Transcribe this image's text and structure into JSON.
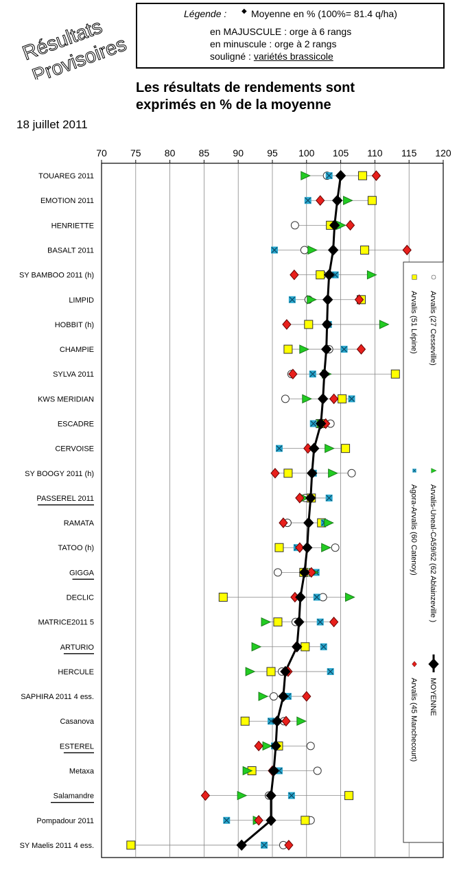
{
  "stamp": {
    "line1": "Résultats",
    "line2": "Provisoires"
  },
  "legend_box": {
    "title": "Légende :",
    "line1": "Moyenne en % (100%= 81.4 q/ha)",
    "line2": "en MAJUSCULE : orge à 6 rangs",
    "line3": "en minuscule : orge à 2 rangs",
    "line4_prefix": "souligné : ",
    "line4_underlined": "variétés brassicole"
  },
  "subtitle": {
    "line1": "Les résultats de rendements sont",
    "line2": "exprimés en % de la moyenne"
  },
  "date": "18 juillet 2011",
  "chart_data": {
    "type": "scatter",
    "xlim": [
      70,
      120
    ],
    "xticks": [
      70,
      75,
      80,
      85,
      90,
      95,
      100,
      105,
      110,
      115,
      120
    ],
    "grid": true,
    "legend_position": "right",
    "categories": [
      {
        "label": "TOUAREG 2011",
        "underline": false
      },
      {
        "label": "EMOTION 2011",
        "underline": false
      },
      {
        "label": "HENRIETTE",
        "underline": false
      },
      {
        "label": "BASALT 2011",
        "underline": false
      },
      {
        "label": "SY BAMBOO 2011 (h)",
        "underline": false
      },
      {
        "label": "LIMPID",
        "underline": false
      },
      {
        "label": "HOBBIT  (h)",
        "underline": false
      },
      {
        "label": "CHAMPIE",
        "underline": false
      },
      {
        "label": "SYLVA 2011",
        "underline": false
      },
      {
        "label": "KWS MERIDIAN",
        "underline": false
      },
      {
        "label": "ESCADRE",
        "underline": false
      },
      {
        "label": "CERVOISE",
        "underline": false
      },
      {
        "label": "SY BOOGY 2011 (h)",
        "underline": false
      },
      {
        "label": "PASSEREL 2011",
        "underline": true
      },
      {
        "label": "RAMATA",
        "underline": false
      },
      {
        "label": "TATOO  (h)",
        "underline": false
      },
      {
        "label": "GIGGA",
        "underline": true
      },
      {
        "label": "DECLIC",
        "underline": false
      },
      {
        "label": "MATRICE2011 5",
        "underline": false
      },
      {
        "label": "ARTURIO",
        "underline": true
      },
      {
        "label": "HERCULE",
        "underline": false
      },
      {
        "label": "SAPHIRA 2011  4 ess.",
        "underline": false
      },
      {
        "label": "Casanova",
        "underline": false
      },
      {
        "label": "ESTEREL",
        "underline": true
      },
      {
        "label": "Metaxa",
        "underline": false
      },
      {
        "label": "Salamandre",
        "underline": true
      },
      {
        "label": "Pompadour 2011",
        "underline": false
      },
      {
        "label": "SY Maelis 2011  4 ess.",
        "underline": false
      }
    ],
    "series": [
      {
        "name": "Arvalis (51 Lépine)",
        "marker": "square",
        "color": "#ffff00",
        "values": [
          108.2,
          109.6,
          103.5,
          108.5,
          102.0,
          108.0,
          100.3,
          97.3,
          113.0,
          105.2,
          102.0,
          105.7,
          97.3,
          100.7,
          102.2,
          96.0,
          99.6,
          87.8,
          95.8,
          99.8,
          94.8,
          null,
          91.0,
          95.9,
          92.0,
          106.2,
          99.8,
          74.3
        ]
      },
      {
        "name": "Arvalis (27 Cesseville)",
        "marker": "circle",
        "color": "#ffffff",
        "values": [
          103.0,
          null,
          98.3,
          99.7,
          102.3,
          100.3,
          103.0,
          103.3,
          97.8,
          96.9,
          103.5,
          null,
          106.6,
          99.8,
          97.2,
          104.2,
          95.8,
          102.4,
          98.4,
          null,
          96.4,
          95.2,
          96.7,
          100.6,
          101.6,
          94.5,
          100.6,
          96.6
        ]
      },
      {
        "name": "Agora-Arvalis (60 Catenoy)",
        "marker": "x-square",
        "color": "#29a8cf",
        "values": [
          103.3,
          100.2,
          104.5,
          95.3,
          104.2,
          97.9,
          103.2,
          105.5,
          100.9,
          106.6,
          101.0,
          96.0,
          101.0,
          103.3,
          102.6,
          98.6,
          101.4,
          101.5,
          102.0,
          102.5,
          103.5,
          97.3,
          94.8,
          95.3,
          96.0,
          97.8,
          88.3,
          93.8
        ]
      },
      {
        "name": "Arvalis-Uneal-CA59/62 (62 Ablainzeville )",
        "marker": "triangle",
        "color": "#22cc22",
        "values": [
          99.8,
          106.0,
          105.0,
          100.8,
          109.5,
          100.7,
          111.3,
          99.6,
          102.9,
          100.0,
          102.2,
          103.3,
          103.8,
          99.6,
          103.2,
          102.8,
          101.0,
          106.3,
          94.0,
          92.6,
          91.7,
          93.6,
          99.2,
          94.2,
          91.3,
          90.5,
          92.8,
          null
        ]
      },
      {
        "name": "Arvalis (45 Manchecourt)",
        "marker": "diamond",
        "color": "#e8201c",
        "values": [
          110.2,
          102.0,
          106.4,
          114.7,
          98.2,
          107.7,
          97.1,
          108.0,
          98.0,
          104.0,
          102.8,
          100.2,
          95.4,
          99.0,
          96.6,
          99.0,
          100.7,
          98.3,
          104.0,
          98.5,
          97.3,
          100.0,
          97.0,
          93.0,
          95.0,
          85.2,
          93.0,
          97.4
        ]
      },
      {
        "name": "MOYENNE",
        "marker": "diamond-line",
        "color": "#000000",
        "values": [
          105.0,
          104.5,
          104.1,
          103.9,
          103.3,
          103.1,
          103.0,
          102.9,
          102.6,
          102.4,
          102.1,
          101.1,
          100.8,
          100.6,
          100.3,
          100.1,
          99.7,
          99.1,
          98.9,
          98.6,
          96.9,
          96.6,
          95.7,
          95.5,
          95.2,
          94.8,
          94.8,
          90.5
        ]
      }
    ]
  }
}
